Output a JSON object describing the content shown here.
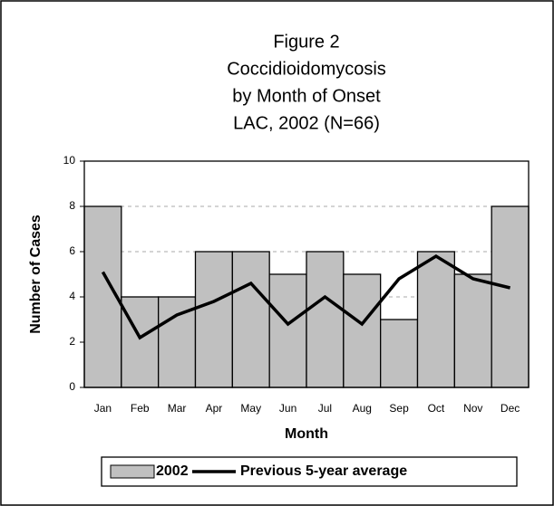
{
  "chart_data": {
    "type": "bar",
    "title": [
      "Figure 2",
      "Coccidioidomycosis",
      "by Month of Onset",
      "LAC, 2002 (N=66)"
    ],
    "x_label": "Month",
    "y_label": "Number of Cases",
    "categories": [
      "Jan",
      "Feb",
      "Mar",
      "Apr",
      "May",
      "Jun",
      "Jul",
      "Aug",
      "Sep",
      "Oct",
      "Nov",
      "Dec"
    ],
    "series": [
      {
        "name": "2002",
        "type": "bar",
        "color": "#c0c0c0",
        "values": [
          8,
          4,
          4,
          6,
          6,
          5,
          6,
          5,
          3,
          6,
          5,
          8
        ]
      },
      {
        "name": "Previous 5-year average",
        "type": "line",
        "color": "#000000",
        "values": [
          5.1,
          2.2,
          3.2,
          3.8,
          4.6,
          2.8,
          4.0,
          2.8,
          4.8,
          5.8,
          4.8,
          4.4
        ]
      }
    ],
    "ylim": [
      0,
      10
    ],
    "yticks": [
      0,
      2,
      4,
      6,
      8,
      10
    ],
    "grid": true,
    "legend": "bottom"
  }
}
